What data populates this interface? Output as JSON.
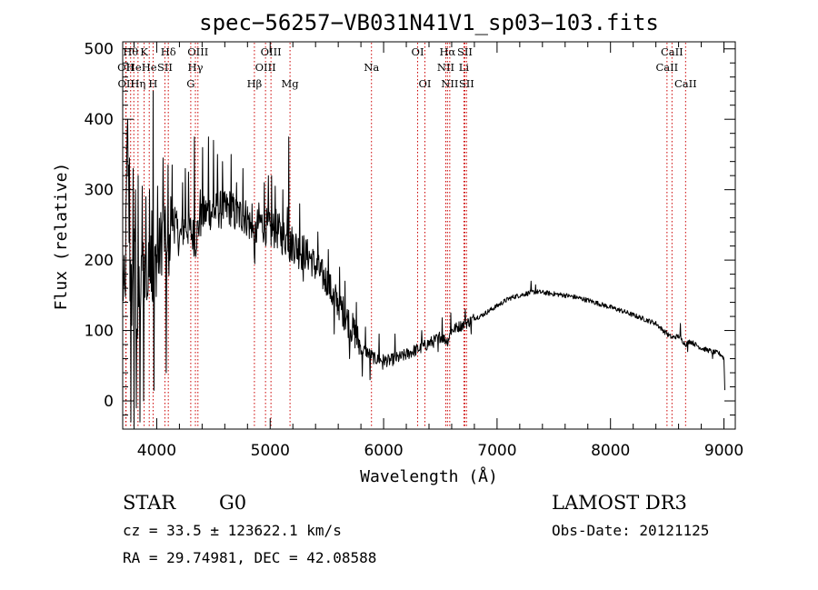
{
  "chart_data": {
    "type": "line",
    "title": "spec−56257−VB031N41V1_sp03−103.fits",
    "xlabel": "Wavelength (Å)",
    "ylabel": "Flux (relative)",
    "xlim": [
      3700,
      9100
    ],
    "ylim": [
      -40,
      510
    ],
    "x_ticks": [
      4000,
      5000,
      6000,
      7000,
      8000,
      9000
    ],
    "y_ticks": [
      0,
      100,
      200,
      300,
      400,
      500
    ],
    "line_color": "#000000",
    "marker_color": "#cc0000",
    "series": [
      {
        "name": "flux",
        "knots": [
          [
            3700,
            170
          ],
          [
            3720,
            140
          ],
          [
            3740,
            360
          ],
          [
            3760,
            180
          ],
          [
            3780,
            150
          ],
          [
            3800,
            210
          ],
          [
            3830,
            120
          ],
          [
            3860,
            160
          ],
          [
            3890,
            200
          ],
          [
            3920,
            160
          ],
          [
            3950,
            220
          ],
          [
            3968,
            130
          ],
          [
            3990,
            200
          ],
          [
            4020,
            205
          ],
          [
            4060,
            250
          ],
          [
            4100,
            180
          ],
          [
            4130,
            260
          ],
          [
            4160,
            250
          ],
          [
            4200,
            230
          ],
          [
            4250,
            250
          ],
          [
            4300,
            240
          ],
          [
            4340,
            230
          ],
          [
            4380,
            255
          ],
          [
            4420,
            265
          ],
          [
            4460,
            270
          ],
          [
            4500,
            268
          ],
          [
            4550,
            272
          ],
          [
            4600,
            270
          ],
          [
            4650,
            275
          ],
          [
            4700,
            262
          ],
          [
            4750,
            265
          ],
          [
            4800,
            260
          ],
          [
            4860,
            230
          ],
          [
            4900,
            255
          ],
          [
            4950,
            250
          ],
          [
            5000,
            240
          ],
          [
            5050,
            245
          ],
          [
            5100,
            235
          ],
          [
            5150,
            230
          ],
          [
            5172,
            220
          ],
          [
            5200,
            225
          ],
          [
            5250,
            215
          ],
          [
            5300,
            210
          ],
          [
            5350,
            205
          ],
          [
            5400,
            190
          ],
          [
            5450,
            180
          ],
          [
            5500,
            170
          ],
          [
            5550,
            150
          ],
          [
            5600,
            140
          ],
          [
            5650,
            125
          ],
          [
            5700,
            110
          ],
          [
            5750,
            95
          ],
          [
            5800,
            75
          ],
          [
            5850,
            70
          ],
          [
            5890,
            65
          ],
          [
            5920,
            60
          ],
          [
            5950,
            58
          ],
          [
            6000,
            58
          ],
          [
            6050,
            57
          ],
          [
            6100,
            60
          ],
          [
            6150,
            62
          ],
          [
            6200,
            66
          ],
          [
            6250,
            70
          ],
          [
            6300,
            73
          ],
          [
            6350,
            77
          ],
          [
            6400,
            82
          ],
          [
            6450,
            85
          ],
          [
            6500,
            92
          ],
          [
            6563,
            85
          ],
          [
            6600,
            100
          ],
          [
            6650,
            105
          ],
          [
            6700,
            108
          ],
          [
            6750,
            112
          ],
          [
            6800,
            118
          ],
          [
            6850,
            120
          ],
          [
            6900,
            125
          ],
          [
            6950,
            130
          ],
          [
            7000,
            135
          ],
          [
            7050,
            140
          ],
          [
            7100,
            145
          ],
          [
            7150,
            148
          ],
          [
            7200,
            150
          ],
          [
            7250,
            152
          ],
          [
            7300,
            154
          ],
          [
            7350,
            155
          ],
          [
            7400,
            154
          ],
          [
            7450,
            153
          ],
          [
            7500,
            152
          ],
          [
            7600,
            150
          ],
          [
            7700,
            147
          ],
          [
            7800,
            143
          ],
          [
            7900,
            138
          ],
          [
            8000,
            133
          ],
          [
            8100,
            128
          ],
          [
            8200,
            122
          ],
          [
            8300,
            116
          ],
          [
            8400,
            110
          ],
          [
            8498,
            95
          ],
          [
            8542,
            90
          ],
          [
            8600,
            92
          ],
          [
            8662,
            80
          ],
          [
            8700,
            85
          ],
          [
            8800,
            75
          ],
          [
            8900,
            70
          ],
          [
            8950,
            68
          ],
          [
            8980,
            65
          ],
          [
            9000,
            60
          ],
          [
            9010,
            5
          ]
        ],
        "spikes": [
          [
            3745,
            400
          ],
          [
            3752,
            335
          ],
          [
            3761,
            345
          ],
          [
            3770,
            -30
          ],
          [
            3790,
            330
          ],
          [
            3798,
            -35
          ],
          [
            3812,
            300
          ],
          [
            3820,
            -10
          ],
          [
            3835,
            320
          ],
          [
            3850,
            -30
          ],
          [
            3870,
            305
          ],
          [
            3885,
            0
          ],
          [
            3905,
            290
          ],
          [
            3935,
            300
          ],
          [
            3955,
            270
          ],
          [
            3966,
            440
          ],
          [
            3975,
            15
          ],
          [
            4008,
            305
          ],
          [
            4055,
            345
          ],
          [
            4082,
            40
          ],
          [
            4098,
            335
          ],
          [
            4122,
            290
          ],
          [
            4135,
            335
          ],
          [
            4158,
            275
          ],
          [
            4226,
            310
          ],
          [
            4250,
            330
          ],
          [
            4278,
            325
          ],
          [
            4330,
            375
          ],
          [
            4345,
            205
          ],
          [
            4382,
            300
          ],
          [
            4402,
            360
          ],
          [
            4455,
            375
          ],
          [
            4500,
            370
          ],
          [
            4535,
            350
          ],
          [
            4580,
            340
          ],
          [
            4655,
            350
          ],
          [
            4704,
            310
          ],
          [
            4760,
            330
          ],
          [
            4840,
            280
          ],
          [
            4862,
            195
          ],
          [
            4948,
            310
          ],
          [
            4985,
            320
          ],
          [
            5010,
            320
          ],
          [
            5045,
            305
          ],
          [
            5110,
            300
          ],
          [
            5152,
            275
          ],
          [
            5165,
            375
          ],
          [
            5260,
            280
          ],
          [
            5292,
            170
          ],
          [
            5420,
            240
          ],
          [
            5510,
            215
          ],
          [
            5565,
            95
          ],
          [
            5610,
            190
          ],
          [
            5660,
            170
          ],
          [
            5700,
            60
          ],
          [
            5760,
            140
          ],
          [
            5812,
            35
          ],
          [
            5840,
            105
          ],
          [
            5880,
            30
          ],
          [
            5960,
            95
          ],
          [
            5990,
            45
          ],
          [
            6100,
            95
          ],
          [
            6335,
            100
          ],
          [
            6480,
            70
          ],
          [
            6515,
            118
          ],
          [
            6590,
            125
          ],
          [
            6720,
            130
          ],
          [
            6770,
            95
          ],
          [
            7300,
            170
          ],
          [
            7340,
            165
          ],
          [
            8490,
            100
          ],
          [
            8615,
            110
          ],
          [
            8680,
            70
          ],
          [
            8900,
            60
          ]
        ]
      }
    ],
    "line_markers": [
      {
        "wl": 3727,
        "label": "OII",
        "row": 2
      },
      {
        "wl": 3730,
        "label": "OII",
        "row": 3
      },
      {
        "wl": 3770,
        "label": "Hθ",
        "row": 1
      },
      {
        "wl": 3798,
        "label": "He",
        "row": 2
      },
      {
        "wl": 3835,
        "label": "Hη",
        "row": 3
      },
      {
        "wl": 3889,
        "label": "K",
        "row": 1
      },
      {
        "wl": 3934,
        "label": "He",
        "row": 2
      },
      {
        "wl": 3968,
        "label": "H",
        "row": 3
      },
      {
        "wl": 4072,
        "label": "SII",
        "row": 2
      },
      {
        "wl": 4102,
        "label": "Hδ",
        "row": 1
      },
      {
        "wl": 4300,
        "label": "G",
        "row": 3
      },
      {
        "wl": 4341,
        "label": "Hγ",
        "row": 2
      },
      {
        "wl": 4363,
        "label": "OIII",
        "row": 1
      },
      {
        "wl": 4861,
        "label": "Hβ",
        "row": 3
      },
      {
        "wl": 4959,
        "label": "OIII",
        "row": 2
      },
      {
        "wl": 5007,
        "label": "OIII",
        "row": 1
      },
      {
        "wl": 5175,
        "label": "Mg",
        "row": 3
      },
      {
        "wl": 5893,
        "label": "Na",
        "row": 2
      },
      {
        "wl": 6300,
        "label": "OI",
        "row": 1
      },
      {
        "wl": 6364,
        "label": "OI",
        "row": 3
      },
      {
        "wl": 6548,
        "label": "NII",
        "row": 2
      },
      {
        "wl": 6563,
        "label": "Hα",
        "row": 1
      },
      {
        "wl": 6583,
        "label": "NII",
        "row": 3
      },
      {
        "wl": 6708,
        "label": "Li",
        "row": 2
      },
      {
        "wl": 6716,
        "label": "SII",
        "row": 1
      },
      {
        "wl": 6731,
        "label": "SII",
        "row": 3
      },
      {
        "wl": 8498,
        "label": "CaII",
        "row": 2
      },
      {
        "wl": 8542,
        "label": "CaII",
        "row": 1
      },
      {
        "wl": 8662,
        "label": "CaII",
        "row": 3
      }
    ]
  },
  "info": {
    "class": "STAR",
    "subclass": "G0",
    "survey": "LAMOST DR3",
    "cz": "cz = 33.5 ± 123622.1 km/s",
    "obs_date": "Obs-Date: 20121125",
    "coords": "RA =  29.74981, DEC =  42.08588"
  }
}
